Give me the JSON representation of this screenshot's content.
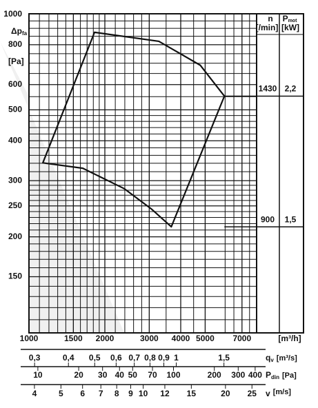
{
  "y_label": "Δp",
  "y_label_sub": "fa",
  "y_unit": "[Pa]",
  "chart_data": {
    "type": "line",
    "log_scale": true,
    "grid": true,
    "xlim": [
      1000,
      8000
    ],
    "ylim": [
      100,
      1000
    ],
    "xticks": [
      1000,
      1500,
      2000,
      3000,
      4000,
      5000,
      7000
    ],
    "yticks": [
      150,
      200,
      250,
      300,
      400,
      500,
      600,
      800,
      1000
    ],
    "xminor": [
      1100,
      1200,
      1300,
      1400,
      1600,
      1700,
      1800,
      1900,
      2200,
      2400,
      2600,
      2800,
      3500,
      4500,
      6000,
      6500,
      7500
    ],
    "yminor": [
      110,
      120,
      130,
      140,
      160,
      170,
      180,
      190,
      210,
      220,
      230,
      240,
      260,
      270,
      280,
      290,
      320,
      340,
      360,
      380,
      420,
      440,
      460,
      480,
      550,
      650,
      700,
      750,
      850,
      900,
      950
    ],
    "x_unit": "[m³/h]",
    "series": [
      {
        "color": "#111111",
        "x": [
          1135,
          1820,
          3275,
          4780,
          5960,
          3670,
          3070,
          2390,
          1635
        ],
        "values": [
          341,
          875,
          820,
          690,
          552,
          215,
          244,
          283,
          328
        ]
      }
    ]
  },
  "table": {
    "n_head": "n",
    "n_unit": "[/min]",
    "p_head": "P",
    "p_sub": "mot",
    "p_unit": "[kW]",
    "rows": [
      {
        "n": "1430",
        "p": "2,2"
      },
      {
        "n": "900",
        "p": "1,5"
      }
    ]
  },
  "scales": [
    {
      "label": "q",
      "sub": "v",
      "unit": "[m³/s]",
      "lim": [
        0.286,
        1.98
      ],
      "ticks": [
        {
          "value": 0.3,
          "label": "0,3"
        },
        {
          "value": 0.4,
          "label": "0,4"
        },
        {
          "value": 0.5,
          "label": "0,5"
        },
        {
          "value": 0.6,
          "label": "0,6"
        },
        {
          "value": 0.7,
          "label": "0,7"
        },
        {
          "value": 0.8,
          "label": "0,8"
        },
        {
          "value": 0.9,
          "label": "0,9"
        },
        1,
        {
          "value": 1.5,
          "label": "1,5"
        }
      ]
    },
    {
      "label": "P",
      "sub": "din",
      "unit": "[Pa]",
      "lim": [
        8.6,
        410
      ],
      "ticks": [
        10,
        20,
        30,
        40,
        50,
        70,
        100,
        200,
        300,
        400
      ]
    },
    {
      "label": "v",
      "sub": "",
      "unit": "[m/s]",
      "lim": [
        3.82,
        26
      ],
      "ticks": [
        4,
        5,
        6,
        7,
        8,
        9,
        10,
        12,
        15,
        20,
        25
      ]
    }
  ]
}
